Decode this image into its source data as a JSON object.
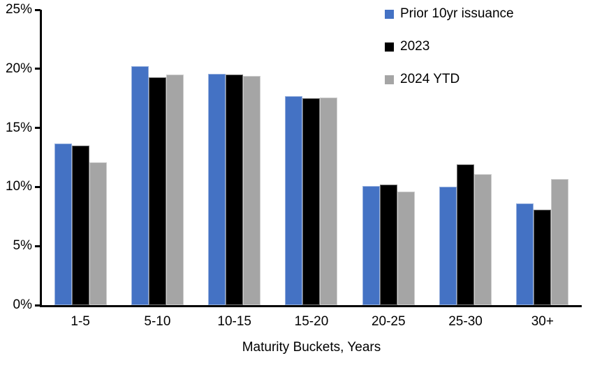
{
  "chart_data": {
    "type": "bar",
    "title": "",
    "xlabel": "Maturity Buckets, Years",
    "ylabel": "",
    "ylim": [
      0,
      25
    ],
    "ytick_step": 5,
    "yticks": [
      "0%",
      "5%",
      "10%",
      "15%",
      "20%",
      "25%"
    ],
    "grid": false,
    "legend_position": "top-right-inside",
    "categories": [
      "1-5",
      "5-10",
      "10-15",
      "15-20",
      "20-25",
      "25-30",
      "30+"
    ],
    "series": [
      {
        "name": "Prior 10yr issuance",
        "color": "#4472C4",
        "values": [
          13.7,
          20.2,
          19.6,
          17.7,
          10.1,
          10.0,
          8.6
        ]
      },
      {
        "name": "2023",
        "color": "#000000",
        "values": [
          13.5,
          19.3,
          19.5,
          17.5,
          10.2,
          11.9,
          8.1
        ]
      },
      {
        "name": "2024 YTD",
        "color": "#A5A5A5",
        "values": [
          12.1,
          19.5,
          19.4,
          17.6,
          9.6,
          11.1,
          10.7
        ]
      }
    ]
  }
}
